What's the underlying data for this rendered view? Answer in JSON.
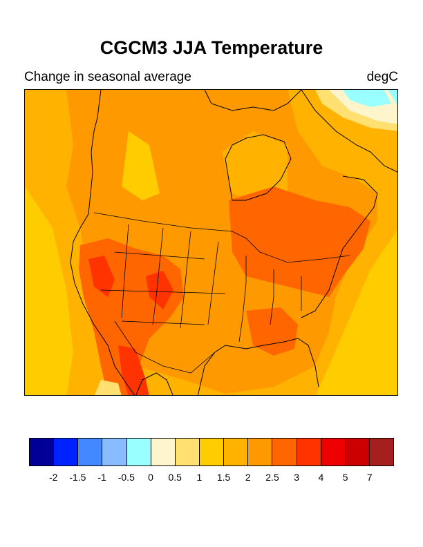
{
  "title": "CGCM3 JJA Temperature",
  "subtitle_left": "Change in seasonal average",
  "subtitle_right": "degC",
  "colorbar": {
    "colors": [
      "#000099",
      "#0022ff",
      "#4488ff",
      "#88bbff",
      "#99ffff",
      "#fff5cc",
      "#ffe070",
      "#ffcc00",
      "#ffb300",
      "#ff9900",
      "#ff6600",
      "#ff3300",
      "#ee0000",
      "#cc0000",
      "#a51f1f"
    ],
    "labels": [
      "-2",
      "-1.5",
      "-1",
      "-0.5",
      "0",
      "0.5",
      "1",
      "1.5",
      "2",
      "2.5",
      "3",
      "4",
      "5",
      "7"
    ]
  }
}
